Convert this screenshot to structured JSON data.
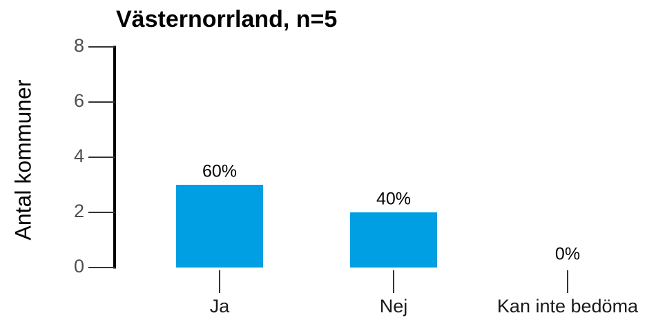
{
  "chart_data": {
    "type": "bar",
    "title": "Västernorrland, n=5",
    "ylabel": "Antal kommuner",
    "categories": [
      "Ja",
      "Nej",
      "Kan inte bedöma"
    ],
    "values": [
      3,
      2,
      0
    ],
    "percentages": [
      60,
      40,
      0
    ],
    "percent_labels": [
      "60%",
      "40%",
      "0%"
    ],
    "color": "#009fe3",
    "ylim": [
      0,
      8
    ],
    "yticks": [
      0,
      2,
      4,
      6,
      8
    ],
    "grid": false
  }
}
